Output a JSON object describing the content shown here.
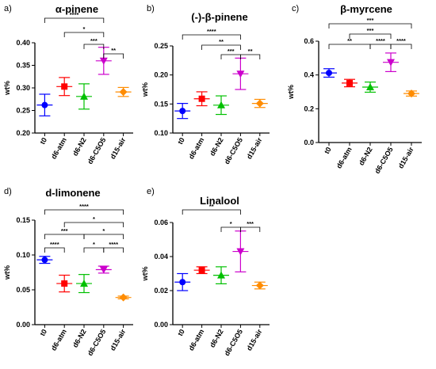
{
  "chart_data": [
    {
      "type": "scatter",
      "panel_label": "a)",
      "title": "α-pinene",
      "ylabel": "wt%",
      "categories": [
        "t0",
        "d6-atm",
        "d6-N2",
        "d6-C5O5",
        "d15-air"
      ],
      "ylim": [
        0.2,
        0.4
      ],
      "yticks": [
        "0.20",
        "0.25",
        "0.30",
        "0.35",
        "0.40"
      ],
      "grid": false,
      "values": [
        0.262,
        0.303,
        0.281,
        0.36,
        0.291
      ],
      "error": [
        0.024,
        0.02,
        0.028,
        0.03,
        0.01
      ],
      "markers": [
        "circle",
        "square",
        "triangle-up",
        "triangle-down",
        "diamond"
      ],
      "colors": [
        "#0000FF",
        "#FF0000",
        "#00C000",
        "#CC00CC",
        "#FF8C00"
      ],
      "significance": [
        {
          "from": "t0",
          "to": "d6-C5O5",
          "label": "****"
        },
        {
          "from": "d6-atm",
          "to": "d6-C5O5",
          "label": "*"
        },
        {
          "from": "d6-N2",
          "to": "d6-C5O5",
          "label": "***"
        },
        {
          "from": "d6-C5O5",
          "to": "d15-air",
          "label": "**"
        }
      ]
    },
    {
      "type": "scatter",
      "panel_label": "b)",
      "title": "(-)-β-pinene",
      "ylabel": "wt%",
      "categories": [
        "t0",
        "d6-atm",
        "d6-N2",
        "d6-C5O5",
        "d15-air"
      ],
      "ylim": [
        0.1,
        0.25
      ],
      "yticks": [
        "0.10",
        "0.15",
        "0.20",
        "0.25"
      ],
      "grid": false,
      "values": [
        0.138,
        0.159,
        0.148,
        0.202,
        0.151
      ],
      "error": [
        0.013,
        0.012,
        0.016,
        0.027,
        0.007
      ],
      "markers": [
        "circle",
        "square",
        "triangle-up",
        "triangle-down",
        "diamond"
      ],
      "colors": [
        "#0000FF",
        "#FF0000",
        "#00C000",
        "#CC00CC",
        "#FF8C00"
      ],
      "significance": [
        {
          "from": "t0",
          "to": "d6-C5O5",
          "label": "****"
        },
        {
          "from": "d6-atm",
          "to": "d6-C5O5",
          "label": "**"
        },
        {
          "from": "d6-N2",
          "to": "d6-C5O5",
          "label": "***"
        },
        {
          "from": "d6-C5O5",
          "to": "d15-air",
          "label": "**"
        }
      ]
    },
    {
      "type": "scatter",
      "panel_label": "c)",
      "title": "β-myrcene",
      "ylabel": "wt%",
      "categories": [
        "t0",
        "d6-atm",
        "d6-N2",
        "d6-C5O5",
        "d15-air"
      ],
      "ylim": [
        0.0,
        0.6
      ],
      "yticks": [
        "0.0",
        "0.2",
        "0.4",
        "0.6"
      ],
      "grid": false,
      "values": [
        0.412,
        0.352,
        0.328,
        0.475,
        0.29
      ],
      "error": [
        0.025,
        0.022,
        0.03,
        0.055,
        0.015
      ],
      "markers": [
        "circle",
        "square",
        "triangle-up",
        "triangle-down",
        "diamond"
      ],
      "colors": [
        "#0000FF",
        "#FF0000",
        "#00C000",
        "#CC00CC",
        "#FF8C00"
      ],
      "significance": [
        {
          "from": "t0",
          "to": "d15-air",
          "label": "***"
        },
        {
          "from": "d6-atm",
          "to": "d6-C5O5",
          "label": "***"
        },
        {
          "from": "t0",
          "to": "d6-N2",
          "label": "**"
        },
        {
          "from": "d6-N2",
          "to": "d6-C5O5",
          "label": "****"
        },
        {
          "from": "d6-C5O5",
          "to": "d15-air",
          "label": "****"
        }
      ]
    },
    {
      "type": "scatter",
      "panel_label": "d)",
      "title": "d-limonene",
      "ylabel": "wt%",
      "categories": [
        "t0",
        "d6-atm",
        "d6-N2",
        "d6-C5O5",
        "d15-air"
      ],
      "ylim": [
        0.0,
        0.15
      ],
      "yticks": [
        "0.00",
        "0.05",
        "0.10",
        "0.15"
      ],
      "grid": false,
      "values": [
        0.093,
        0.059,
        0.059,
        0.079,
        0.039
      ],
      "error": [
        0.005,
        0.012,
        0.013,
        0.005,
        0.002
      ],
      "markers": [
        "circle",
        "square",
        "triangle-up",
        "triangle-down",
        "diamond"
      ],
      "colors": [
        "#0000FF",
        "#FF0000",
        "#00C000",
        "#CC00CC",
        "#FF8C00"
      ],
      "significance": [
        {
          "from": "t0",
          "to": "d15-air",
          "label": "****"
        },
        {
          "from": "d6-atm",
          "to": "d15-air",
          "label": "*"
        },
        {
          "from": "t0",
          "to": "d6-N2",
          "label": "***"
        },
        {
          "from": "d6-N2",
          "to": "d15-air",
          "label": "*"
        },
        {
          "from": "t0",
          "to": "d6-atm",
          "label": "****"
        },
        {
          "from": "d6-N2",
          "to": "d6-C5O5",
          "label": "*"
        },
        {
          "from": "d6-C5O5",
          "to": "d15-air",
          "label": "****"
        }
      ]
    },
    {
      "type": "scatter",
      "panel_label": "e)",
      "title": "Linalool",
      "ylabel": "wt%",
      "categories": [
        "t0",
        "d6-atm",
        "d6-N2",
        "d6-C5O5",
        "d15-air"
      ],
      "ylim": [
        0.0,
        0.06
      ],
      "yticks": [
        "0.00",
        "0.02",
        "0.04",
        "0.06"
      ],
      "grid": false,
      "values": [
        0.025,
        0.032,
        0.029,
        0.043,
        0.023
      ],
      "error": [
        0.005,
        0.002,
        0.005,
        0.012,
        0.002
      ],
      "markers": [
        "circle",
        "square",
        "triangle-up",
        "triangle-down",
        "diamond"
      ],
      "colors": [
        "#0000FF",
        "#FF0000",
        "#00C000",
        "#CC00CC",
        "#FF8C00"
      ],
      "significance": [
        {
          "from": "t0",
          "to": "d6-C5O5",
          "label": "**"
        },
        {
          "from": "d6-N2",
          "to": "d6-C5O5",
          "label": "*"
        },
        {
          "from": "d6-C5O5",
          "to": "d15-air",
          "label": "***"
        }
      ]
    }
  ]
}
